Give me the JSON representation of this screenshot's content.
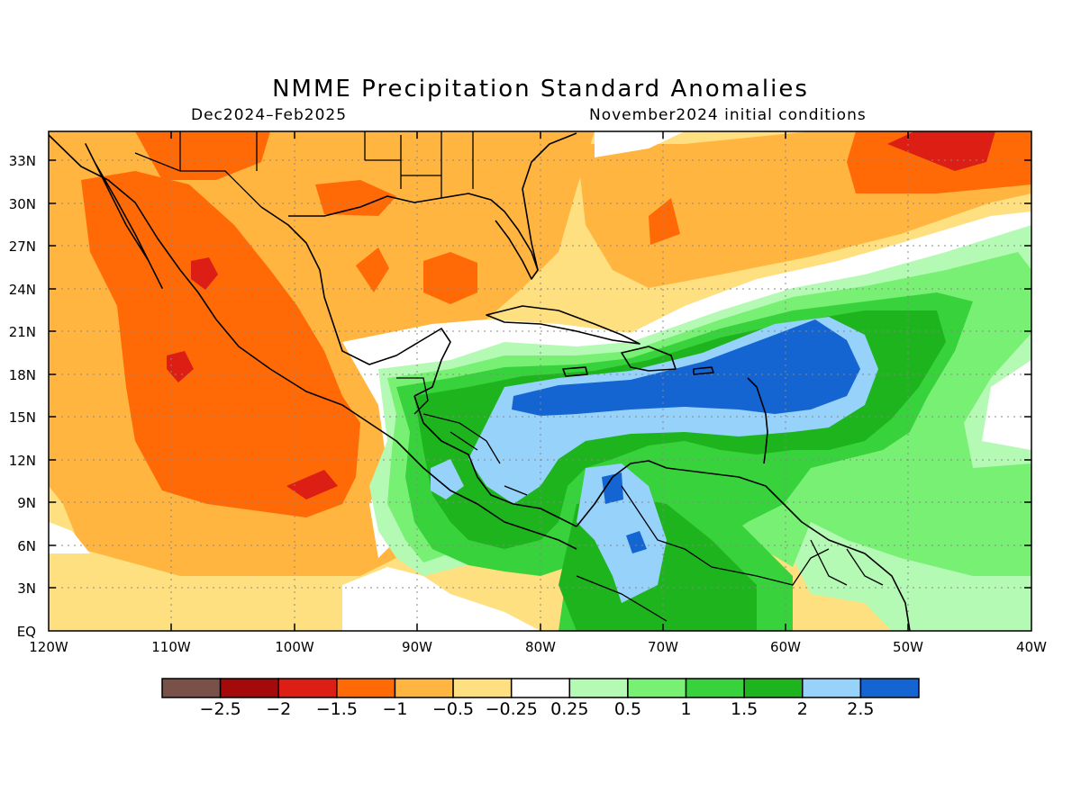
{
  "figure": {
    "title": "NMME Precipitation Standard Anomalies",
    "period": "Dec2024–Feb2025",
    "init": "November2024 initial conditions"
  },
  "axes": {
    "lat_ticks": [
      "33N",
      "30N",
      "27N",
      "24N",
      "21N",
      "18N",
      "15N",
      "12N",
      "9N",
      "6N",
      "3N",
      "EQ"
    ],
    "lon_ticks": [
      "120W",
      "110W",
      "100W",
      "90W",
      "80W",
      "70W",
      "60W",
      "50W",
      "40W"
    ]
  },
  "colorbar": {
    "labels": [
      "−2.5",
      "−2",
      "−1.5",
      "−1",
      "−0.5",
      "−0.25",
      "0.25",
      "0.5",
      "1",
      "1.5",
      "2",
      "2.5"
    ],
    "colors": [
      "#7a5148",
      "#a50a0a",
      "#dc1e14",
      "#ff6a06",
      "#ffb53f",
      "#ffe080",
      "#ffffff",
      "#b4fab4",
      "#78f073",
      "#37d23c",
      "#1eb41e",
      "#96d2fa",
      "#1464d2"
    ]
  },
  "map": {
    "extent": {
      "lon": [
        -120,
        -40
      ],
      "lat": [
        0,
        35
      ]
    },
    "gridlines": "dotted",
    "background_color": "#ffe080"
  }
}
